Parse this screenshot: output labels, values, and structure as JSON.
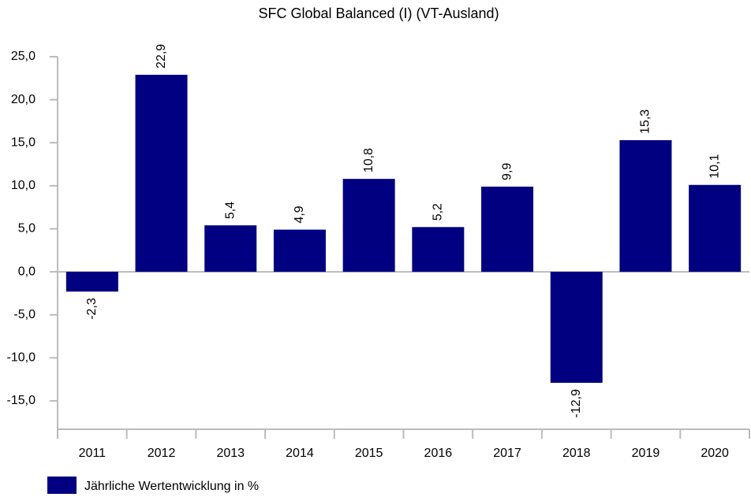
{
  "chart_data": {
    "type": "bar",
    "title": "SFC Global Balanced (I) (VT-Ausland)",
    "categories": [
      "2011",
      "2012",
      "2013",
      "2014",
      "2015",
      "2016",
      "2017",
      "2018",
      "2019",
      "2020"
    ],
    "series": [
      {
        "name": "Jährliche Wertentwicklung in %",
        "color": "#000080",
        "values": [
          -2.3,
          22.9,
          5.4,
          4.9,
          10.8,
          5.2,
          9.9,
          -12.9,
          15.3,
          10.1
        ],
        "value_labels": [
          "-2,3",
          "22,9",
          "5,4",
          "4,9",
          "10,8",
          "5,2",
          "9,9",
          "-12,9",
          "15,3",
          "10,1"
        ]
      }
    ],
    "ylim": [
      -18.3,
      25
    ],
    "yticks": [
      {
        "value": -15,
        "label": "-15,0"
      },
      {
        "value": -10,
        "label": "-10,0"
      },
      {
        "value": -5,
        "label": "-5,0"
      },
      {
        "value": 0,
        "label": "0,0"
      },
      {
        "value": 5,
        "label": "5,0"
      },
      {
        "value": 10,
        "label": "10,0"
      },
      {
        "value": 15,
        "label": "15,0"
      },
      {
        "value": 20,
        "label": "20,0"
      },
      {
        "value": 25,
        "label": "25,0"
      }
    ],
    "grid": false,
    "legend": "bottom-left"
  }
}
